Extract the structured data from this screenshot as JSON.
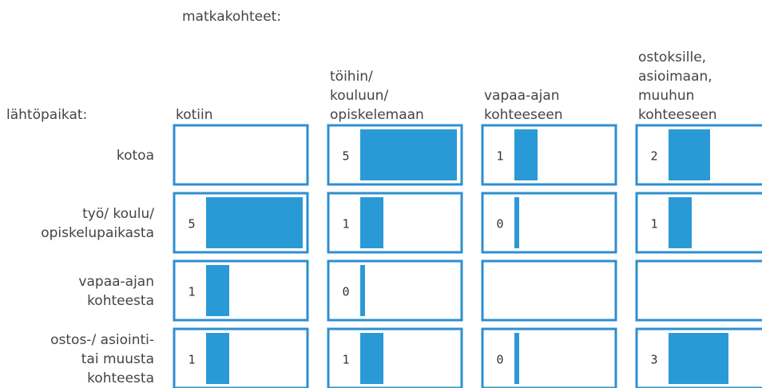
{
  "chart_data": {
    "type": "matrix",
    "column_title": "matkakohteet:",
    "row_title": "lähtöpaikat:",
    "columns": [
      [
        "kotiin"
      ],
      [
        "töihin/",
        "kouluun/",
        "opiskelemaan"
      ],
      [
        "vapaa-ajan",
        "kohteeseen"
      ],
      [
        "ostoksille,",
        "asioimaan,",
        "muuhun",
        "kohteeseen"
      ]
    ],
    "rows": [
      [
        "kotoa"
      ],
      [
        "työ/ koulu/",
        "opiskelupaikasta"
      ],
      [
        "vapaa-ajan",
        "kohteesta"
      ],
      [
        "ostos-/ asiointi-",
        "tai muusta",
        "kohteesta"
      ]
    ],
    "values": [
      [
        null,
        5,
        1,
        2
      ],
      [
        5,
        1,
        0,
        1
      ],
      [
        1,
        0,
        null,
        null
      ],
      [
        1,
        1,
        0,
        3
      ]
    ],
    "color": "#2a9ad6",
    "border_color": "#2e8fd0"
  }
}
